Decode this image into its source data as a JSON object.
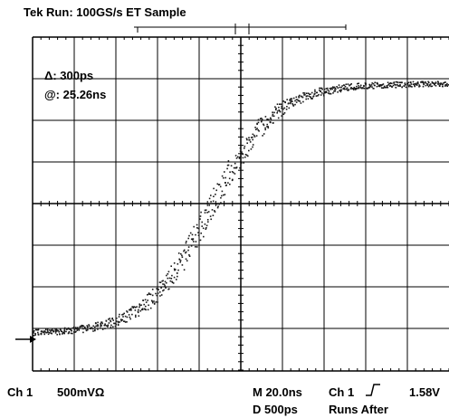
{
  "header": {
    "title": "Tek Run: 100GS/s ET Sample"
  },
  "annotation": {
    "delta": "Δ: 300ps",
    "at": "@: 25.26ns"
  },
  "footer": {
    "channel": "Ch 1",
    "volts_per_div": "500mVΩ",
    "timebase": "M 20.0ns",
    "delay": "D  500ps",
    "trigger_source": "Ch 1",
    "trigger_level": "1.58V",
    "runs_after": "Runs After"
  },
  "markers": {
    "ch1_ground": "1→"
  },
  "colors": {
    "trace": "#1a1a1a",
    "grid": "#000000",
    "background": "#ffffff"
  },
  "icons": {
    "trigger_edge": "rising-edge-icon"
  }
}
